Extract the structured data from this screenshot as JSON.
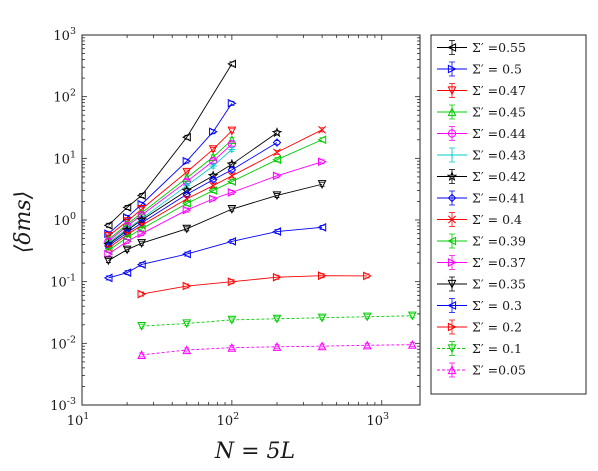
{
  "chart_data": {
    "type": "line",
    "title": "",
    "xlabel": "N = 5L",
    "ylabel": "⟨δms⟩",
    "x_scale": "log",
    "y_scale": "log",
    "xlim": [
      10,
      1800
    ],
    "ylim": [
      0.001,
      1000
    ],
    "x_ticks": [
      {
        "value": 10,
        "base": "10",
        "exp": "1"
      },
      {
        "value": 100,
        "base": "10",
        "exp": "2"
      },
      {
        "value": 1000,
        "base": "10",
        "exp": "3"
      }
    ],
    "y_ticks": [
      {
        "value": 0.001,
        "base": "10",
        "exp": "-3"
      },
      {
        "value": 0.01,
        "base": "10",
        "exp": "-2"
      },
      {
        "value": 0.1,
        "base": "10",
        "exp": "-1"
      },
      {
        "value": 1,
        "base": "10",
        "exp": "0"
      },
      {
        "value": 10,
        "base": "10",
        "exp": "1"
      },
      {
        "value": 100,
        "base": "10",
        "exp": "2"
      },
      {
        "value": 1000,
        "base": "10",
        "exp": "3"
      }
    ],
    "grid": false,
    "legend_position": "outside-right",
    "series": [
      {
        "name": "Σ′ =0.55",
        "color": "#000000",
        "marker": "triangle-left",
        "dash": false,
        "x": [
          15,
          20,
          25,
          50,
          100
        ],
        "y": [
          0.82,
          1.6,
          2.5,
          22,
          340
        ]
      },
      {
        "name": "Σ′ = 0.5",
        "color": "#0000ff",
        "marker": "triangle-right",
        "dash": false,
        "x": [
          15,
          20,
          25,
          50,
          75,
          100
        ],
        "y": [
          0.6,
          1.1,
          1.8,
          9,
          27,
          78
        ]
      },
      {
        "name": "Σ′ =0.47",
        "color": "#ff0000",
        "marker": "triangle-down",
        "dash": false,
        "x": [
          15,
          20,
          25,
          50,
          75,
          100
        ],
        "y": [
          0.55,
          0.95,
          1.5,
          6,
          14,
          28
        ]
      },
      {
        "name": "Σ′ =0.45",
        "color": "#00cc00",
        "marker": "triangle-up",
        "dash": false,
        "x": [
          15,
          20,
          25,
          50,
          75,
          100
        ],
        "y": [
          0.48,
          0.85,
          1.3,
          4.8,
          10.5,
          20
        ]
      },
      {
        "name": "Σ′ =0.44",
        "color": "#ff00ff",
        "marker": "circle",
        "dash": false,
        "x": [
          15,
          20,
          25,
          50,
          75,
          100
        ],
        "y": [
          0.45,
          0.8,
          1.2,
          4.2,
          9,
          17
        ]
      },
      {
        "name": "Σ′ =0.43",
        "color": "#00cccc",
        "marker": "plus",
        "dash": false,
        "x": [
          15,
          20,
          25,
          50,
          75,
          100
        ],
        "y": [
          0.42,
          0.72,
          1.05,
          3.6,
          7.5,
          14
        ]
      },
      {
        "name": "Σ′ =0.42",
        "color": "#000000",
        "marker": "star",
        "dash": false,
        "x": [
          15,
          20,
          25,
          50,
          75,
          100,
          200
        ],
        "y": [
          0.4,
          0.68,
          1.0,
          3.0,
          5.2,
          8,
          26
        ]
      },
      {
        "name": "Σ′ =0.41",
        "color": "#0000ff",
        "marker": "diamond",
        "dash": false,
        "x": [
          15,
          20,
          25,
          50,
          75,
          100,
          200
        ],
        "y": [
          0.38,
          0.62,
          0.9,
          2.6,
          4.5,
          6.5,
          18
        ]
      },
      {
        "name": "Σ′ = 0.4",
        "color": "#ff0000",
        "marker": "x",
        "dash": false,
        "x": [
          15,
          20,
          25,
          50,
          75,
          100,
          200,
          400
        ],
        "y": [
          0.35,
          0.58,
          0.82,
          2.2,
          3.6,
          5.2,
          12.5,
          29
        ]
      },
      {
        "name": "Σ′ =0.39",
        "color": "#00cc00",
        "marker": "triangle-left",
        "dash": false,
        "x": [
          15,
          20,
          25,
          50,
          75,
          100,
          200,
          400
        ],
        "y": [
          0.32,
          0.52,
          0.72,
          1.85,
          3,
          4.2,
          9.5,
          20
        ]
      },
      {
        "name": "Σ′ =0.37",
        "color": "#ff00ff",
        "marker": "triangle-right",
        "dash": false,
        "x": [
          15,
          20,
          25,
          50,
          75,
          100,
          200,
          400
        ],
        "y": [
          0.28,
          0.45,
          0.6,
          1.45,
          2.2,
          2.8,
          5.2,
          8.8
        ]
      },
      {
        "name": "Σ′ =0.35",
        "color": "#000000",
        "marker": "triangle-down",
        "dash": false,
        "x": [
          15,
          20,
          25,
          50,
          100,
          200,
          400
        ],
        "y": [
          0.22,
          0.33,
          0.42,
          0.72,
          1.5,
          2.5,
          3.8
        ]
      },
      {
        "name": "Σ′ = 0.3",
        "color": "#0000ff",
        "marker": "triangle-left",
        "dash": false,
        "x": [
          15,
          20,
          25,
          50,
          100,
          200,
          400
        ],
        "y": [
          0.115,
          0.14,
          0.19,
          0.28,
          0.45,
          0.65,
          0.76
        ]
      },
      {
        "name": "Σ′ = 0.2",
        "color": "#ff0000",
        "marker": "triangle-right",
        "dash": false,
        "x": [
          25,
          50,
          100,
          200,
          400,
          800
        ],
        "y": [
          0.063,
          0.085,
          0.1,
          0.118,
          0.125,
          0.124
        ]
      },
      {
        "name": "Σ′ = 0.1",
        "color": "#00cc00",
        "marker": "triangle-down",
        "dash": true,
        "x": [
          25,
          50,
          100,
          200,
          400,
          800,
          1600
        ],
        "y": [
          0.019,
          0.021,
          0.024,
          0.025,
          0.026,
          0.027,
          0.028
        ]
      },
      {
        "name": "Σ′ =0.05",
        "color": "#ff00ff",
        "marker": "triangle-up",
        "dash": true,
        "x": [
          25,
          50,
          100,
          200,
          400,
          800,
          1600
        ],
        "y": [
          0.0065,
          0.0078,
          0.0085,
          0.0088,
          0.009,
          0.0093,
          0.0095
        ]
      }
    ]
  }
}
